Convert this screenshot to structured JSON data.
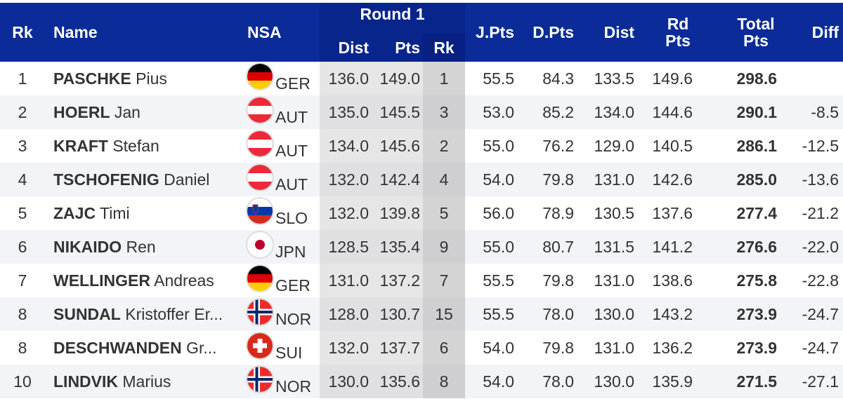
{
  "header": {
    "rk": "Rk",
    "name": "Name",
    "nsa": "NSA",
    "round1": "Round 1",
    "r1_dist": "Dist",
    "r1_pts": "Pts",
    "r1_rk": "Rk",
    "jpts": "J.Pts",
    "dpts": "D.Pts",
    "dist": "Dist",
    "rdpts": "Rd Pts",
    "total": "Total Pts",
    "diff": "Diff"
  },
  "colors": {
    "header_bg": "#0b2c98",
    "round_bg": "#08258c"
  },
  "rows": [
    {
      "rk": "1",
      "last": "PASCHKE",
      "first": "Pius",
      "nsa": "GER",
      "r1_dist": "136.0",
      "r1_pts": "149.0",
      "r1_rk": "1",
      "jpts": "55.5",
      "dpts": "84.3",
      "dist": "133.5",
      "rdpts": "149.6",
      "total": "298.6",
      "diff": ""
    },
    {
      "rk": "2",
      "last": "HOERL",
      "first": "Jan",
      "nsa": "AUT",
      "r1_dist": "135.0",
      "r1_pts": "145.5",
      "r1_rk": "3",
      "jpts": "53.0",
      "dpts": "85.2",
      "dist": "134.0",
      "rdpts": "144.6",
      "total": "290.1",
      "diff": "-8.5"
    },
    {
      "rk": "3",
      "last": "KRAFT",
      "first": "Stefan",
      "nsa": "AUT",
      "r1_dist": "134.0",
      "r1_pts": "145.6",
      "r1_rk": "2",
      "jpts": "55.0",
      "dpts": "76.2",
      "dist": "129.0",
      "rdpts": "140.5",
      "total": "286.1",
      "diff": "-12.5"
    },
    {
      "rk": "4",
      "last": "TSCHOFENIG",
      "first": "Daniel",
      "nsa": "AUT",
      "r1_dist": "132.0",
      "r1_pts": "142.4",
      "r1_rk": "4",
      "jpts": "54.0",
      "dpts": "79.8",
      "dist": "131.0",
      "rdpts": "142.6",
      "total": "285.0",
      "diff": "-13.6"
    },
    {
      "rk": "5",
      "last": "ZAJC",
      "first": "Timi",
      "nsa": "SLO",
      "r1_dist": "132.0",
      "r1_pts": "139.8",
      "r1_rk": "5",
      "jpts": "56.0",
      "dpts": "78.9",
      "dist": "130.5",
      "rdpts": "137.6",
      "total": "277.4",
      "diff": "-21.2"
    },
    {
      "rk": "6",
      "last": "NIKAIDO",
      "first": "Ren",
      "nsa": "JPN",
      "r1_dist": "128.5",
      "r1_pts": "135.4",
      "r1_rk": "9",
      "jpts": "55.0",
      "dpts": "80.7",
      "dist": "131.5",
      "rdpts": "141.2",
      "total": "276.6",
      "diff": "-22.0"
    },
    {
      "rk": "7",
      "last": "WELLINGER",
      "first": "Andreas",
      "nsa": "GER",
      "r1_dist": "131.0",
      "r1_pts": "137.2",
      "r1_rk": "7",
      "jpts": "55.5",
      "dpts": "79.8",
      "dist": "131.0",
      "rdpts": "138.6",
      "total": "275.8",
      "diff": "-22.8"
    },
    {
      "rk": "8",
      "last": "SUNDAL",
      "first": "Kristoffer Er...",
      "nsa": "NOR",
      "r1_dist": "128.0",
      "r1_pts": "130.7",
      "r1_rk": "15",
      "jpts": "55.5",
      "dpts": "78.0",
      "dist": "130.0",
      "rdpts": "143.2",
      "total": "273.9",
      "diff": "-24.7"
    },
    {
      "rk": "8",
      "last": "DESCHWANDEN",
      "first": "Gr...",
      "nsa": "SUI",
      "r1_dist": "132.0",
      "r1_pts": "137.7",
      "r1_rk": "6",
      "jpts": "54.0",
      "dpts": "79.8",
      "dist": "131.0",
      "rdpts": "136.2",
      "total": "273.9",
      "diff": "-24.7"
    },
    {
      "rk": "10",
      "last": "LINDVIK",
      "first": "Marius",
      "nsa": "NOR",
      "r1_dist": "130.0",
      "r1_pts": "135.6",
      "r1_rk": "8",
      "jpts": "54.0",
      "dpts": "78.0",
      "dist": "130.0",
      "rdpts": "135.9",
      "total": "271.5",
      "diff": "-27.1"
    }
  ]
}
